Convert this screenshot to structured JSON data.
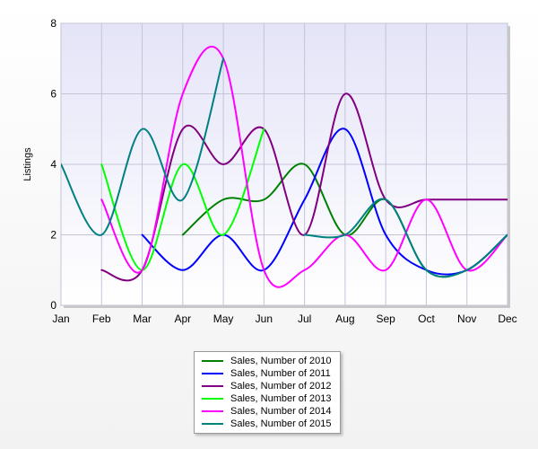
{
  "chart_data": {
    "type": "line",
    "title": "",
    "xlabel": "",
    "ylabel": "Listings",
    "categories": [
      "Jan",
      "Feb",
      "Mar",
      "Apr",
      "May",
      "Jun",
      "Jul",
      "Aug",
      "Sep",
      "Oct",
      "Nov",
      "Dec"
    ],
    "ylim": [
      0,
      8
    ],
    "yticks": [
      "0",
      "2",
      "4",
      "6",
      "8"
    ],
    "grid": true,
    "legend_position": "bottom",
    "series": [
      {
        "name": "Sales, Number of 2010",
        "color": "#008000",
        "values": [
          null,
          null,
          null,
          2,
          3,
          3,
          4,
          2,
          3,
          1,
          1,
          2
        ]
      },
      {
        "name": "Sales, Number of 2011",
        "color": "#0000ff",
        "values": [
          null,
          null,
          2,
          1,
          2,
          1,
          3,
          5,
          2,
          1,
          1,
          2
        ]
      },
      {
        "name": "Sales, Number of 2012",
        "color": "#800080",
        "values": [
          null,
          1,
          1,
          5,
          4,
          5,
          2,
          6,
          3,
          3,
          3,
          3
        ]
      },
      {
        "name": "Sales, Number of 2013",
        "color": "#00ff00",
        "values": [
          null,
          4,
          1,
          4,
          2,
          5,
          null,
          null,
          null,
          null,
          null,
          null
        ]
      },
      {
        "name": "Sales, Number of 2014",
        "color": "#ff00ff",
        "values": [
          null,
          3,
          1,
          6,
          7,
          1,
          1,
          2,
          1,
          3,
          1,
          2
        ]
      },
      {
        "name": "Sales, Number of 2015",
        "color": "#008080",
        "values": [
          4,
          2,
          5,
          3,
          7,
          null,
          2,
          2,
          3,
          1,
          1,
          2
        ]
      }
    ]
  }
}
